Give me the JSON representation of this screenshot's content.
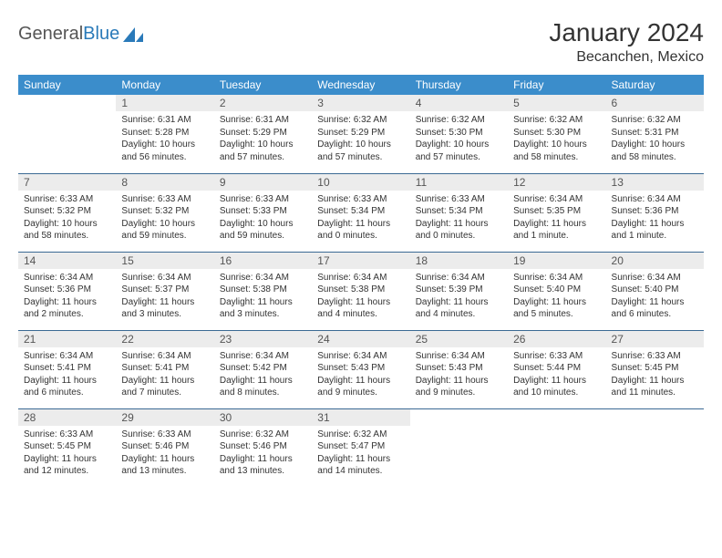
{
  "brand": {
    "part1": "General",
    "part2": "Blue"
  },
  "title": "January 2024",
  "location": "Becanchen, Mexico",
  "colors": {
    "header_bg": "#3b8dcb",
    "header_fg": "#ffffff",
    "rule": "#3b6a94",
    "daynum_bg": "#ececec",
    "brand_blue": "#2a7ab9"
  },
  "weekdays": [
    "Sunday",
    "Monday",
    "Tuesday",
    "Wednesday",
    "Thursday",
    "Friday",
    "Saturday"
  ],
  "weeks": [
    [
      {
        "n": "",
        "lines": []
      },
      {
        "n": "1",
        "lines": [
          "Sunrise: 6:31 AM",
          "Sunset: 5:28 PM",
          "Daylight: 10 hours",
          "and 56 minutes."
        ]
      },
      {
        "n": "2",
        "lines": [
          "Sunrise: 6:31 AM",
          "Sunset: 5:29 PM",
          "Daylight: 10 hours",
          "and 57 minutes."
        ]
      },
      {
        "n": "3",
        "lines": [
          "Sunrise: 6:32 AM",
          "Sunset: 5:29 PM",
          "Daylight: 10 hours",
          "and 57 minutes."
        ]
      },
      {
        "n": "4",
        "lines": [
          "Sunrise: 6:32 AM",
          "Sunset: 5:30 PM",
          "Daylight: 10 hours",
          "and 57 minutes."
        ]
      },
      {
        "n": "5",
        "lines": [
          "Sunrise: 6:32 AM",
          "Sunset: 5:30 PM",
          "Daylight: 10 hours",
          "and 58 minutes."
        ]
      },
      {
        "n": "6",
        "lines": [
          "Sunrise: 6:32 AM",
          "Sunset: 5:31 PM",
          "Daylight: 10 hours",
          "and 58 minutes."
        ]
      }
    ],
    [
      {
        "n": "7",
        "lines": [
          "Sunrise: 6:33 AM",
          "Sunset: 5:32 PM",
          "Daylight: 10 hours",
          "and 58 minutes."
        ]
      },
      {
        "n": "8",
        "lines": [
          "Sunrise: 6:33 AM",
          "Sunset: 5:32 PM",
          "Daylight: 10 hours",
          "and 59 minutes."
        ]
      },
      {
        "n": "9",
        "lines": [
          "Sunrise: 6:33 AM",
          "Sunset: 5:33 PM",
          "Daylight: 10 hours",
          "and 59 minutes."
        ]
      },
      {
        "n": "10",
        "lines": [
          "Sunrise: 6:33 AM",
          "Sunset: 5:34 PM",
          "Daylight: 11 hours",
          "and 0 minutes."
        ]
      },
      {
        "n": "11",
        "lines": [
          "Sunrise: 6:33 AM",
          "Sunset: 5:34 PM",
          "Daylight: 11 hours",
          "and 0 minutes."
        ]
      },
      {
        "n": "12",
        "lines": [
          "Sunrise: 6:34 AM",
          "Sunset: 5:35 PM",
          "Daylight: 11 hours",
          "and 1 minute."
        ]
      },
      {
        "n": "13",
        "lines": [
          "Sunrise: 6:34 AM",
          "Sunset: 5:36 PM",
          "Daylight: 11 hours",
          "and 1 minute."
        ]
      }
    ],
    [
      {
        "n": "14",
        "lines": [
          "Sunrise: 6:34 AM",
          "Sunset: 5:36 PM",
          "Daylight: 11 hours",
          "and 2 minutes."
        ]
      },
      {
        "n": "15",
        "lines": [
          "Sunrise: 6:34 AM",
          "Sunset: 5:37 PM",
          "Daylight: 11 hours",
          "and 3 minutes."
        ]
      },
      {
        "n": "16",
        "lines": [
          "Sunrise: 6:34 AM",
          "Sunset: 5:38 PM",
          "Daylight: 11 hours",
          "and 3 minutes."
        ]
      },
      {
        "n": "17",
        "lines": [
          "Sunrise: 6:34 AM",
          "Sunset: 5:38 PM",
          "Daylight: 11 hours",
          "and 4 minutes."
        ]
      },
      {
        "n": "18",
        "lines": [
          "Sunrise: 6:34 AM",
          "Sunset: 5:39 PM",
          "Daylight: 11 hours",
          "and 4 minutes."
        ]
      },
      {
        "n": "19",
        "lines": [
          "Sunrise: 6:34 AM",
          "Sunset: 5:40 PM",
          "Daylight: 11 hours",
          "and 5 minutes."
        ]
      },
      {
        "n": "20",
        "lines": [
          "Sunrise: 6:34 AM",
          "Sunset: 5:40 PM",
          "Daylight: 11 hours",
          "and 6 minutes."
        ]
      }
    ],
    [
      {
        "n": "21",
        "lines": [
          "Sunrise: 6:34 AM",
          "Sunset: 5:41 PM",
          "Daylight: 11 hours",
          "and 6 minutes."
        ]
      },
      {
        "n": "22",
        "lines": [
          "Sunrise: 6:34 AM",
          "Sunset: 5:41 PM",
          "Daylight: 11 hours",
          "and 7 minutes."
        ]
      },
      {
        "n": "23",
        "lines": [
          "Sunrise: 6:34 AM",
          "Sunset: 5:42 PM",
          "Daylight: 11 hours",
          "and 8 minutes."
        ]
      },
      {
        "n": "24",
        "lines": [
          "Sunrise: 6:34 AM",
          "Sunset: 5:43 PM",
          "Daylight: 11 hours",
          "and 9 minutes."
        ]
      },
      {
        "n": "25",
        "lines": [
          "Sunrise: 6:34 AM",
          "Sunset: 5:43 PM",
          "Daylight: 11 hours",
          "and 9 minutes."
        ]
      },
      {
        "n": "26",
        "lines": [
          "Sunrise: 6:33 AM",
          "Sunset: 5:44 PM",
          "Daylight: 11 hours",
          "and 10 minutes."
        ]
      },
      {
        "n": "27",
        "lines": [
          "Sunrise: 6:33 AM",
          "Sunset: 5:45 PM",
          "Daylight: 11 hours",
          "and 11 minutes."
        ]
      }
    ],
    [
      {
        "n": "28",
        "lines": [
          "Sunrise: 6:33 AM",
          "Sunset: 5:45 PM",
          "Daylight: 11 hours",
          "and 12 minutes."
        ]
      },
      {
        "n": "29",
        "lines": [
          "Sunrise: 6:33 AM",
          "Sunset: 5:46 PM",
          "Daylight: 11 hours",
          "and 13 minutes."
        ]
      },
      {
        "n": "30",
        "lines": [
          "Sunrise: 6:32 AM",
          "Sunset: 5:46 PM",
          "Daylight: 11 hours",
          "and 13 minutes."
        ]
      },
      {
        "n": "31",
        "lines": [
          "Sunrise: 6:32 AM",
          "Sunset: 5:47 PM",
          "Daylight: 11 hours",
          "and 14 minutes."
        ]
      },
      {
        "n": "",
        "lines": []
      },
      {
        "n": "",
        "lines": []
      },
      {
        "n": "",
        "lines": []
      }
    ]
  ]
}
